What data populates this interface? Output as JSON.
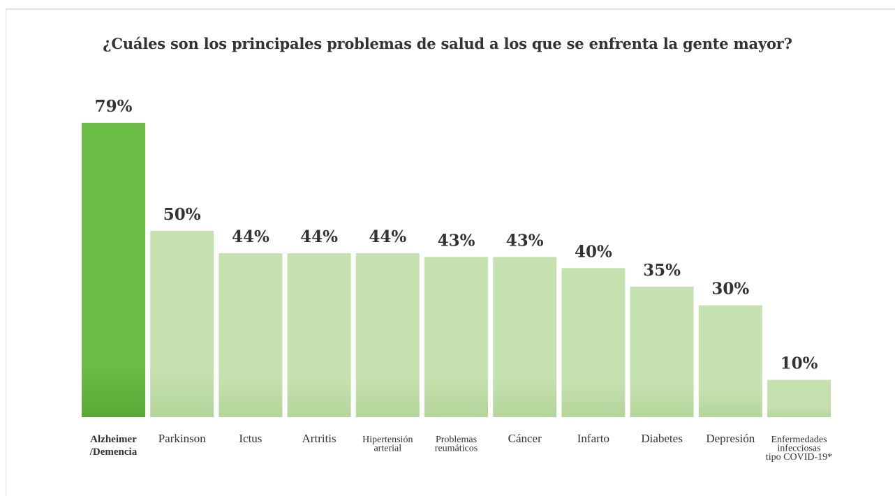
{
  "title": "¿Cuáles son los principales problemas de salud a los que se enfrenta la gente mayor?",
  "colors": {
    "highlight_bar": "#6cbd45",
    "highlight_bar_bottom": "#58a838",
    "bar": "#c6e1b0",
    "bar_bottom": "#b6d69c",
    "text": "#333333"
  },
  "chart_data": {
    "type": "bar",
    "title": "¿Cuáles son los principales problemas de salud a los que se enfrenta la gente mayor?",
    "categories": [
      [
        "Alzheimer",
        "/Demencia"
      ],
      [
        "Parkinson"
      ],
      [
        "Ictus"
      ],
      [
        "Artritis"
      ],
      [
        "Hipertensión",
        "arterial"
      ],
      [
        "Problemas",
        "reumáticos"
      ],
      [
        "Cáncer"
      ],
      [
        "Infarto"
      ],
      [
        "Diabetes"
      ],
      [
        "Depresión"
      ],
      [
        "Enfermedades",
        "infecciosas",
        "tipo COVID-19*"
      ]
    ],
    "values": [
      79,
      50,
      44,
      44,
      44,
      43,
      43,
      40,
      35,
      30,
      10
    ],
    "value_labels": [
      "79%",
      "50%",
      "44%",
      "44%",
      "44%",
      "43%",
      "43%",
      "40%",
      "35%",
      "30%",
      "10%"
    ],
    "highlight_index": 0,
    "ylim": [
      0,
      79
    ],
    "xlabel": "",
    "ylabel": "",
    "grid": false,
    "legend": "none"
  }
}
